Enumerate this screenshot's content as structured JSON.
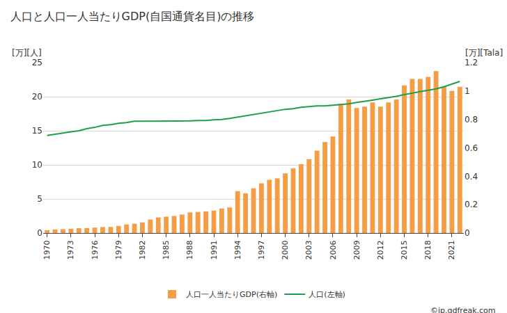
{
  "chart_data": {
    "type": "bar",
    "title": "人口と人口一人当たりGDP(自国通貨名目)の推移",
    "y_label": "[万][人]",
    "y2_label": "[万][Tala]",
    "source": "©jp.gdfreak.com",
    "categories": [
      "1970",
      null,
      null,
      "1973",
      null,
      null,
      "1976",
      null,
      null,
      "1979",
      null,
      null,
      "1982",
      null,
      null,
      "1985",
      null,
      null,
      "1988",
      null,
      null,
      "1991",
      null,
      null,
      "1994",
      null,
      null,
      "1997",
      null,
      null,
      "2000",
      null,
      null,
      "2003",
      null,
      null,
      "2006",
      null,
      null,
      "2009",
      null,
      null,
      "2012",
      null,
      null,
      "2015",
      null,
      null,
      "2018",
      null,
      null,
      "2021",
      null
    ],
    "series": [
      {
        "name": "人口一人当たりGDP(右軸)",
        "type": "bar",
        "axis": "y2",
        "color": "#f59d45",
        "values": [
          0.02,
          0.025,
          0.027,
          0.03,
          0.034,
          0.035,
          0.038,
          0.042,
          0.043,
          0.05,
          0.06,
          0.065,
          0.075,
          0.095,
          0.11,
          0.115,
          0.12,
          0.13,
          0.145,
          0.148,
          0.152,
          0.158,
          0.173,
          0.18,
          0.295,
          0.28,
          0.315,
          0.35,
          0.375,
          0.385,
          0.42,
          0.455,
          0.485,
          0.52,
          0.58,
          0.64,
          0.68,
          0.91,
          0.94,
          0.88,
          0.89,
          0.92,
          0.89,
          0.92,
          0.94,
          1.04,
          1.085,
          1.085,
          1.1,
          1.14,
          1.03,
          1.0,
          1.03
        ]
      },
      {
        "name": "人口(左軸)",
        "type": "line",
        "axis": "y",
        "color": "#1e9e4a",
        "values": [
          14.3,
          14.5,
          14.7,
          14.85,
          15.0,
          15.3,
          15.5,
          15.8,
          15.9,
          16.1,
          16.2,
          16.4,
          16.4,
          16.4,
          16.4,
          16.4,
          16.4,
          16.4,
          16.45,
          16.5,
          16.5,
          16.6,
          16.65,
          16.8,
          17.0,
          17.15,
          17.35,
          17.55,
          17.75,
          17.95,
          18.15,
          18.25,
          18.45,
          18.55,
          18.65,
          18.65,
          18.75,
          18.85,
          18.95,
          19.15,
          19.3,
          19.5,
          19.7,
          19.85,
          20.05,
          20.3,
          20.55,
          20.75,
          20.95,
          21.15,
          21.45,
          21.85,
          22.25
        ]
      }
    ],
    "ylim": [
      0,
      25
    ],
    "yticks": [
      0,
      5,
      10,
      15,
      20,
      25
    ],
    "y2lim": [
      0,
      1.2
    ],
    "y2ticks": [
      0,
      0.2,
      0.4,
      0.6,
      0.8,
      1,
      1.2
    ],
    "grid": true,
    "legend": "bottom"
  }
}
